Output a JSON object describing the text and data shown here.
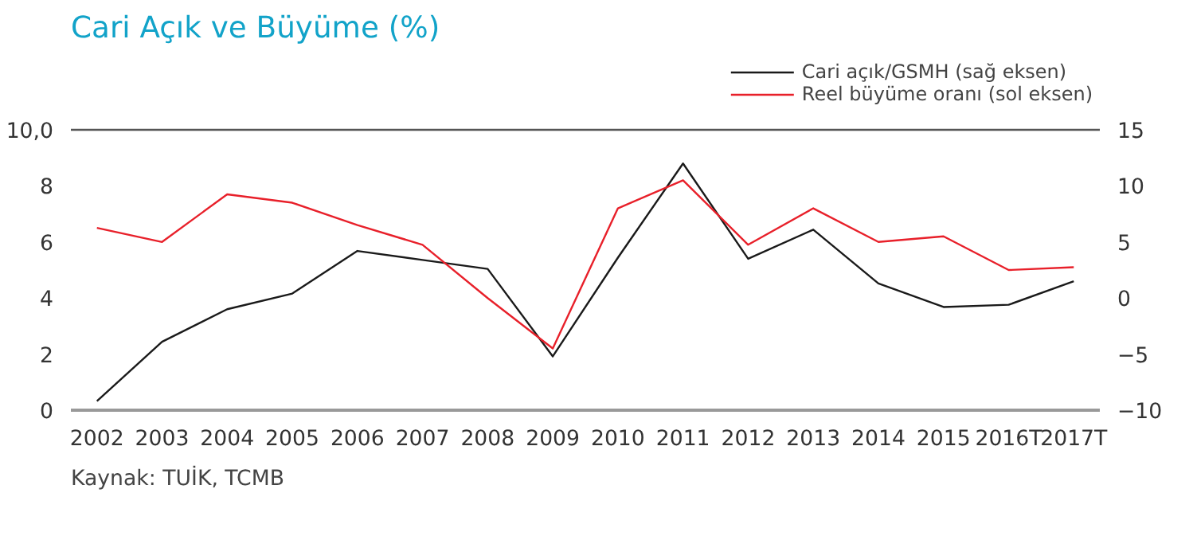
{
  "chart_data": {
    "type": "line",
    "title": "Cari Açık ve Büyüme (%)",
    "categories": [
      "2002",
      "2003",
      "2004",
      "2005",
      "2006",
      "2007",
      "2008",
      "2009",
      "2010",
      "2011",
      "2012",
      "2013",
      "2014",
      "2015",
      "2016T",
      "2017T"
    ],
    "series": [
      {
        "name": "Cari açık/GSMH (sağ eksen)",
        "color": "#1a1a1a",
        "axis": "y2",
        "values": [
          -9.2,
          -3.9,
          -1.0,
          0.4,
          4.2,
          3.4,
          2.6,
          -5.2,
          3.6,
          12.0,
          3.5,
          6.1,
          1.3,
          -0.8,
          -0.6,
          1.5
        ]
      },
      {
        "name": "Reel büyüme oranı (sol eksen)",
        "color": "#e8202a",
        "values": [
          6.5,
          6.0,
          7.7,
          7.4,
          6.6,
          5.9,
          4.0,
          2.2,
          7.2,
          8.2,
          5.9,
          7.2,
          6.0,
          6.2,
          5.0,
          5.1
        ]
      }
    ],
    "ylim": [
      0,
      10
    ],
    "yticks": [
      0,
      2,
      4,
      6,
      8,
      {
        "value": 10,
        "label": "10,0"
      }
    ],
    "y2lim": [
      -10,
      15
    ],
    "y2ticks": [
      {
        "value": -10,
        "label": "−10"
      },
      {
        "value": -5,
        "label": "−5"
      },
      0,
      5,
      10,
      15
    ],
    "grid": false,
    "legend": "top right",
    "marker": "none",
    "line_style": "solid",
    "annotations": [
      "Kaynak: TUİK, TCMB"
    ]
  }
}
